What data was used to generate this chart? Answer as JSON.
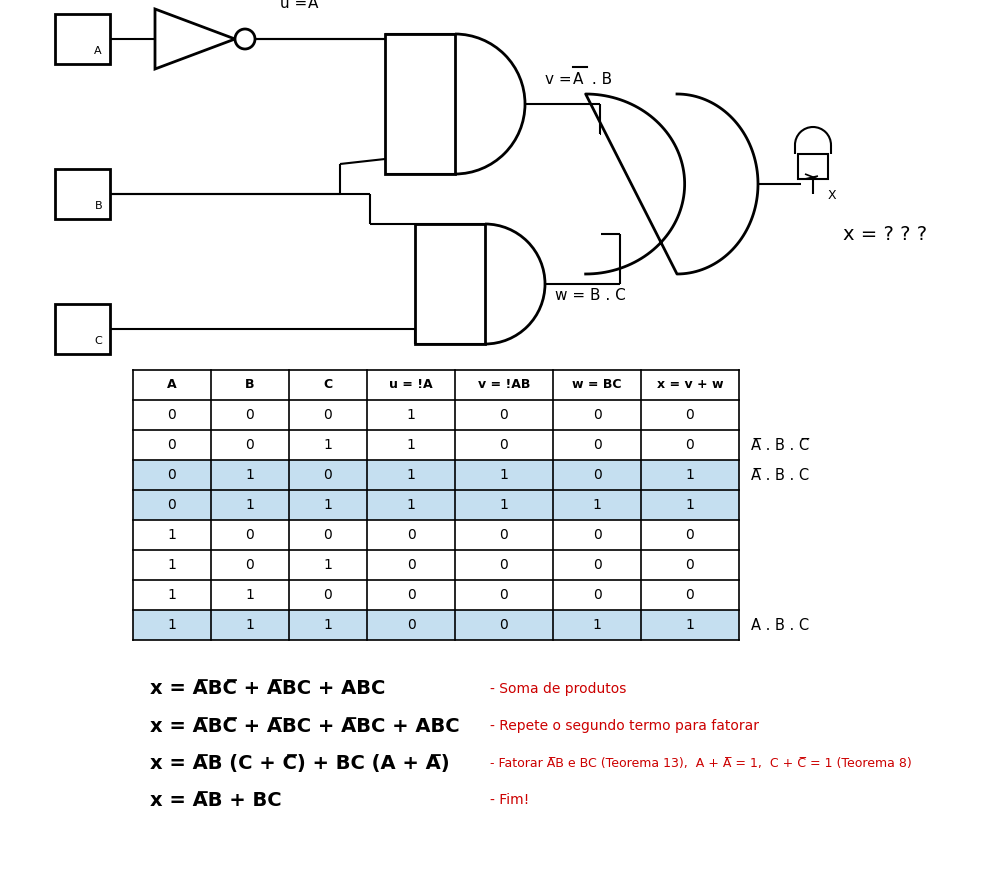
{
  "bg_color": "#ffffff",
  "table_header": [
    "A",
    "B",
    "C",
    "u = !A",
    "v = !AB",
    "w = BC",
    "x = v + w"
  ],
  "table_data": [
    [
      0,
      0,
      0,
      1,
      0,
      0,
      0
    ],
    [
      0,
      0,
      1,
      1,
      0,
      0,
      0
    ],
    [
      0,
      1,
      0,
      1,
      1,
      0,
      1
    ],
    [
      0,
      1,
      1,
      1,
      1,
      1,
      1
    ],
    [
      1,
      0,
      0,
      0,
      0,
      0,
      0
    ],
    [
      1,
      0,
      1,
      0,
      0,
      0,
      0
    ],
    [
      1,
      1,
      0,
      0,
      0,
      0,
      0
    ],
    [
      1,
      1,
      1,
      0,
      0,
      1,
      1
    ]
  ],
  "highlighted_rows": [
    2,
    3,
    7
  ],
  "highlight_color": "#c5dff0",
  "text_color": "#000000",
  "red_color": "#cc0000",
  "circuit_scale": 1.0
}
